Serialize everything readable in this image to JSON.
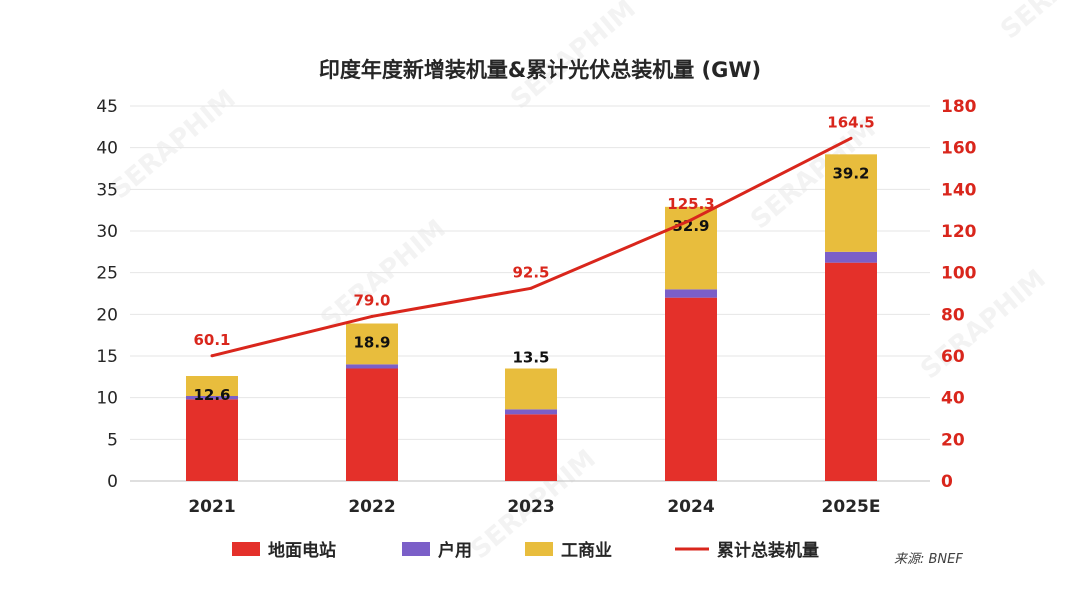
{
  "chart_data": {
    "type": "bar",
    "stacked": true,
    "title": "印度年度新增装机量&累计光伏总装机量 (GW)",
    "categories": [
      "2021",
      "2022",
      "2023",
      "2024",
      "2025E"
    ],
    "series": [
      {
        "name": "地面电站",
        "kind": "bar",
        "color": "#e4302a",
        "values": [
          9.8,
          13.5,
          8.0,
          22.0,
          26.2
        ]
      },
      {
        "name": "户用",
        "kind": "bar",
        "color": "#7b5fc8",
        "values": [
          0.4,
          0.5,
          0.6,
          1.0,
          1.3
        ]
      },
      {
        "name": "工商业",
        "kind": "bar",
        "color": "#e8bd3d",
        "values": [
          2.4,
          4.9,
          4.9,
          9.9,
          11.7
        ]
      },
      {
        "name": "累计总装机量",
        "kind": "line",
        "color": "#d9261c",
        "axis": "right",
        "values": [
          60.1,
          79.0,
          92.5,
          125.3,
          164.5
        ]
      }
    ],
    "bar_totals": [
      "12.6",
      "18.9",
      "13.5",
      "32.9",
      "39.2"
    ],
    "line_labels": [
      "60.1",
      "79.0",
      "92.5",
      "125.3",
      "164.5"
    ],
    "y_left": {
      "min": 0,
      "max": 45,
      "step": 5,
      "ticks": [
        "0",
        "5",
        "10",
        "15",
        "20",
        "25",
        "30",
        "35",
        "40",
        "45"
      ]
    },
    "y_right": {
      "min": 0,
      "max": 180,
      "step": 20,
      "ticks": [
        "0",
        "20",
        "40",
        "60",
        "80",
        "100",
        "120",
        "140",
        "160",
        "180"
      ]
    },
    "grid": true,
    "legend_position": "bottom"
  },
  "source_note": "来源: BNEF",
  "watermark_text": "SERAPHIM",
  "colors": {
    "axis_right": "#d9261c",
    "grid": "#e6e6e6"
  }
}
